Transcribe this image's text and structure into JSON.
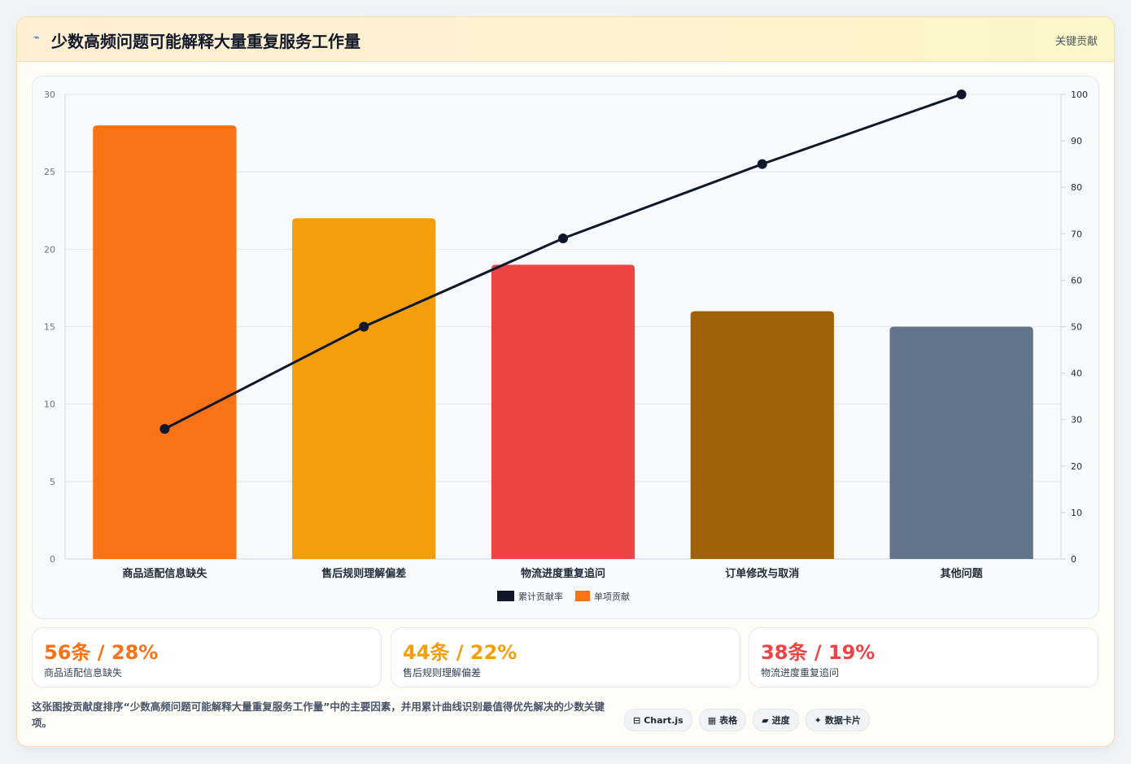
{
  "header": {
    "icon": "bolt-icon",
    "title": "少数高频问题可能解释大量重复服务工作量",
    "tag": "关键贡献"
  },
  "chart_data": {
    "type": "bar",
    "categories": [
      "商品适配信息缺失",
      "售后规则理解偏差",
      "物流进度重复追问",
      "订单修改与取消",
      "其他问题"
    ],
    "series": [
      {
        "name": "单项贡献",
        "type": "bar",
        "axis": "left",
        "values": [
          28,
          22,
          19,
          16,
          15
        ],
        "colors": [
          "#f97316",
          "#f59e0b",
          "#ef4444",
          "#a16207",
          "#64748b"
        ]
      },
      {
        "name": "累计贡献率",
        "type": "line",
        "axis": "right",
        "values": [
          28,
          50,
          69,
          85,
          100
        ],
        "color": "#0f172a"
      }
    ],
    "ylim_left": [
      0,
      30
    ],
    "yticks_left": [
      0,
      5,
      10,
      15,
      20,
      25,
      30
    ],
    "ylim_right": [
      0,
      100
    ],
    "yticks_right": [
      0,
      10,
      20,
      30,
      40,
      50,
      60,
      70,
      80,
      90,
      100
    ],
    "legend": [
      "累计贡献率",
      "单项贡献"
    ],
    "legend_colors": [
      "#0f172a",
      "#f97316"
    ],
    "legend_position": "bottom",
    "grid": true
  },
  "stats": [
    {
      "value": "56条 / 28%",
      "label": "商品适配信息缺失",
      "color": "#f97316"
    },
    {
      "value": "44条 / 22%",
      "label": "售后规则理解偏差",
      "color": "#f59e0b"
    },
    {
      "value": "38条 / 19%",
      "label": "物流进度重复追问",
      "color": "#ef4444"
    }
  ],
  "footer": {
    "text": "这张图按贡献度排序“少数高频问题可能解释大量重复服务工作量”中的主要因素，并用累计曲线识别最值得优先解决的少数关键项。",
    "pills": [
      {
        "icon": "chart-icon",
        "glyph": "⊟",
        "label": "Chart.js"
      },
      {
        "icon": "table-icon",
        "glyph": "▦",
        "label": "表格"
      },
      {
        "icon": "progress-icon",
        "glyph": "▰",
        "label": "进度"
      },
      {
        "icon": "card-icon",
        "glyph": "✦",
        "label": "数据卡片"
      }
    ]
  }
}
